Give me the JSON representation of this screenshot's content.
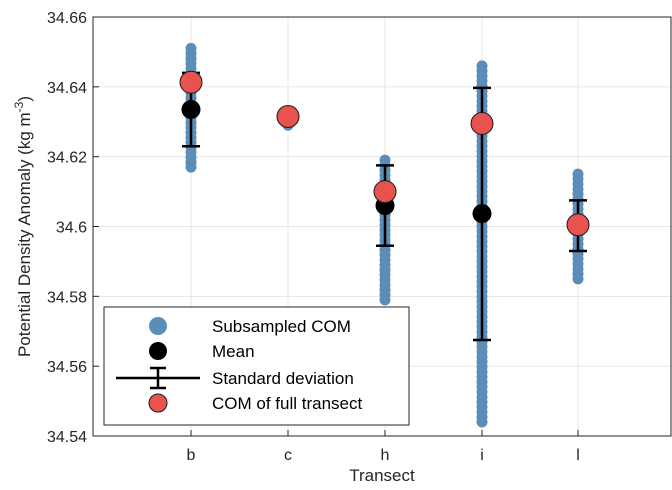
{
  "chart_data": {
    "type": "scatter",
    "xlabel": "Transect",
    "ylabel_main": "Potential Density Anomaly (kg m",
    "ylabel_sup": "-3",
    "ylabel_close": ")",
    "categories": [
      "b",
      "c",
      "h",
      "i",
      "l"
    ],
    "ylim": [
      34.54,
      34.66
    ],
    "yticks": [
      34.54,
      34.56,
      34.58,
      34.6,
      34.62,
      34.64,
      34.66
    ],
    "ytick_labels": [
      "34.54",
      "34.56",
      "34.58",
      "34.6",
      "34.62",
      "34.64",
      "34.66"
    ],
    "grid": true,
    "legend_position": "bottom-left",
    "colors": {
      "subsampled": "#5b8db8",
      "mean": "#000000",
      "full": "#e8524f",
      "grid": "#e6e6e6",
      "axis": "#262626"
    },
    "series": [
      {
        "name": "Subsampled COM",
        "marker": "circle-blue",
        "ranges": [
          {
            "category": "b",
            "min": 34.617,
            "max": 34.651
          },
          {
            "category": "c",
            "min": 34.629,
            "max": 34.633
          },
          {
            "category": "h",
            "min": 34.579,
            "max": 34.619
          },
          {
            "category": "i",
            "min": 34.544,
            "max": 34.646
          },
          {
            "category": "l",
            "min": 34.585,
            "max": 34.615
          }
        ]
      },
      {
        "name": "Mean",
        "marker": "circle-black",
        "values": [
          34.6335,
          34.6315,
          34.606,
          34.6037,
          34.6003
        ]
      },
      {
        "name": "Standard deviation",
        "marker": "errorbar",
        "lower": [
          34.623,
          null,
          34.5945,
          34.5675,
          34.593
        ],
        "upper": [
          34.644,
          null,
          34.6175,
          34.6397,
          34.6075
        ]
      },
      {
        "name": "COM of full transect",
        "marker": "circle-red",
        "values": [
          34.6413,
          34.6315,
          34.61,
          34.6295,
          34.6005
        ]
      }
    ]
  }
}
